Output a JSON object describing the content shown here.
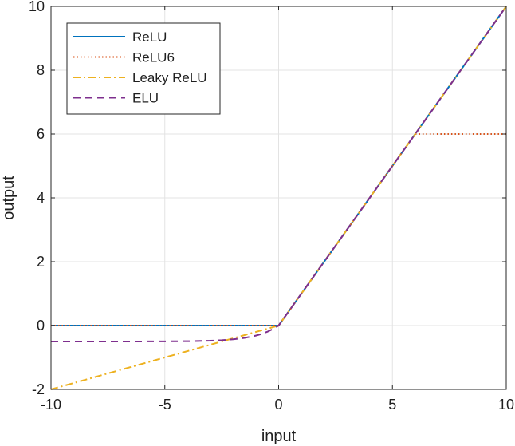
{
  "chart_data": {
    "type": "line",
    "title": "",
    "xlabel": "input",
    "ylabel": "output",
    "xlim": [
      -10,
      10
    ],
    "ylim": [
      -2,
      10
    ],
    "xticks": [
      -10,
      -5,
      0,
      5,
      10
    ],
    "yticks": [
      -2,
      0,
      2,
      4,
      6,
      8,
      10
    ],
    "xtick_labels": [
      "-10",
      "-5",
      "0",
      "5",
      "10"
    ],
    "ytick_labels": [
      "-2",
      "0",
      "2",
      "4",
      "6",
      "8",
      "10"
    ],
    "grid": true,
    "legend_position": "top-left",
    "series": [
      {
        "name": "ReLU",
        "color": "#0072bd",
        "style": "solid",
        "x": [
          -10,
          0,
          10
        ],
        "y": [
          0,
          0,
          10
        ]
      },
      {
        "name": "ReLU6",
        "color": "#d95319",
        "style": "dotted",
        "x": [
          -10,
          0,
          6,
          10
        ],
        "y": [
          0,
          0,
          6,
          6
        ]
      },
      {
        "name": "Leaky ReLU",
        "color": "#edb120",
        "style": "dashdot",
        "x": [
          -10,
          0,
          10
        ],
        "y": [
          -2,
          0,
          10
        ]
      },
      {
        "name": "ELU",
        "color": "#7e2f8e",
        "style": "dashed",
        "x": [
          -10,
          -9,
          -8,
          -7,
          -6,
          -5,
          -4,
          -3,
          -2.5,
          -2,
          -1.5,
          -1,
          -0.75,
          -0.5,
          -0.25,
          0,
          10
        ],
        "y": [
          -0.5,
          -0.4999,
          -0.4998,
          -0.4995,
          -0.4988,
          -0.4966,
          -0.4908,
          -0.4751,
          -0.459,
          -0.4323,
          -0.3884,
          -0.3161,
          -0.2638,
          -0.1967,
          -0.1106,
          0,
          10
        ]
      }
    ]
  }
}
